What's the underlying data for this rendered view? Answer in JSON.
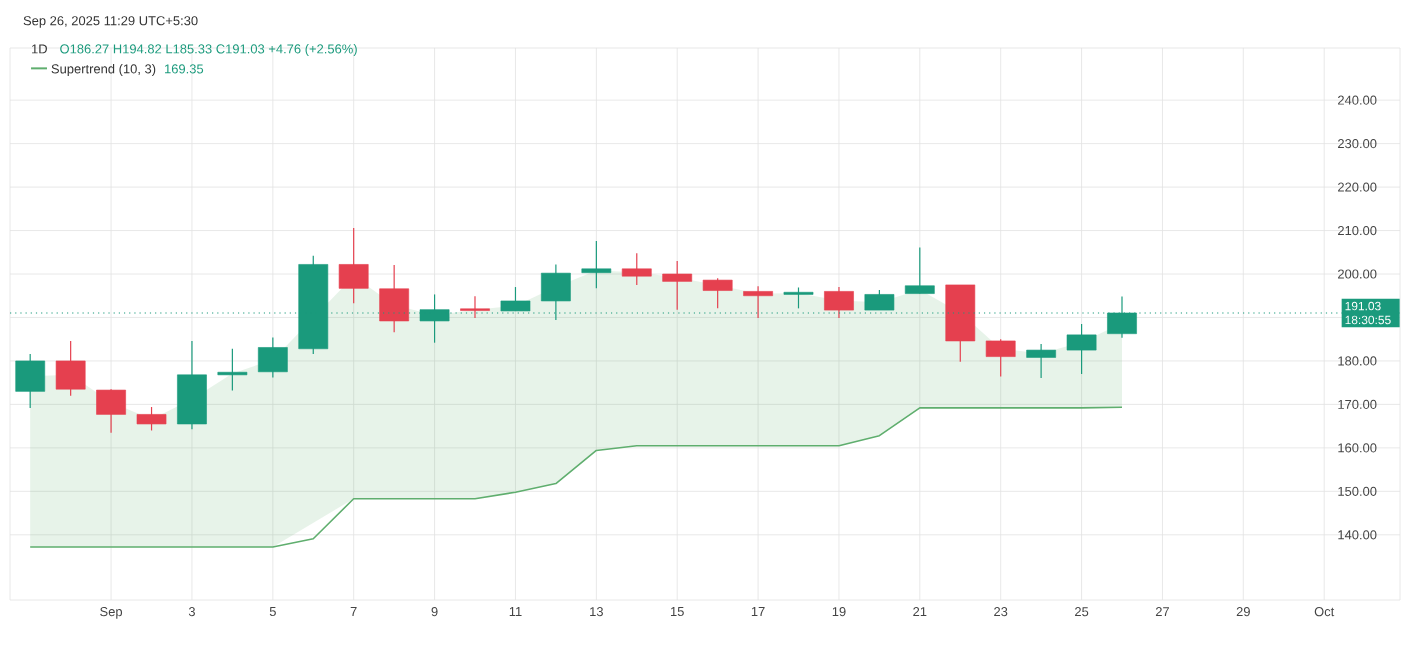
{
  "chart_data": {
    "type": "candlestick",
    "title": "1D",
    "subtitle": "O186.27 H194.82 L185.33 C191.03 +4.76 (+2.56%)",
    "annotations": [
      "Sep 26, 2025 11:29 UTC+5:30",
      "169.35"
    ],
    "x": [
      "2025-08-30",
      "2025-08-31",
      "2025-09-01",
      "2025-09-02",
      "2025-09-03",
      "2025-09-04",
      "2025-09-05",
      "2025-09-06",
      "2025-09-07",
      "2025-09-08",
      "2025-09-09",
      "2025-09-10",
      "2025-09-11",
      "2025-09-12",
      "2025-09-13",
      "2025-09-14",
      "2025-09-15",
      "2025-09-16",
      "2025-09-17",
      "2025-09-18",
      "2025-09-19",
      "2025-09-20",
      "2025-09-21",
      "2025-09-22",
      "2025-09-23",
      "2025-09-24",
      "2025-09-25",
      "2025-09-26"
    ],
    "ohlc": [
      [
        173.0,
        181.6,
        169.2,
        180.0
      ],
      [
        180.0,
        184.6,
        172.0,
        173.5
      ],
      [
        173.3,
        173.5,
        163.5,
        167.7
      ],
      [
        167.7,
        169.4,
        164.0,
        165.5
      ],
      [
        165.5,
        184.6,
        164.3,
        176.8
      ],
      [
        176.8,
        182.8,
        173.2,
        177.4
      ],
      [
        177.5,
        185.4,
        176.2,
        183.1
      ],
      [
        182.8,
        204.2,
        181.6,
        202.2
      ],
      [
        202.2,
        210.6,
        193.3,
        196.7
      ],
      [
        196.6,
        202.1,
        186.6,
        189.2
      ],
      [
        189.2,
        195.3,
        184.2,
        191.8
      ],
      [
        192.0,
        194.9,
        189.9,
        191.6
      ],
      [
        191.5,
        197.0,
        191.5,
        193.8
      ],
      [
        193.8,
        202.2,
        189.4,
        200.2
      ],
      [
        200.3,
        207.6,
        196.7,
        201.2
      ],
      [
        201.2,
        204.8,
        197.5,
        199.5
      ],
      [
        200.0,
        203.0,
        191.8,
        198.3
      ],
      [
        198.6,
        199.0,
        192.1,
        196.2
      ],
      [
        196.0,
        197.2,
        189.9,
        195.0
      ],
      [
        195.3,
        196.9,
        192.1,
        195.8
      ],
      [
        196.0,
        197.0,
        189.9,
        191.7
      ],
      [
        191.7,
        196.3,
        191.7,
        195.3
      ],
      [
        195.5,
        206.1,
        195.5,
        197.3
      ],
      [
        197.5,
        197.5,
        179.8,
        184.6
      ],
      [
        184.6,
        185.0,
        176.4,
        181.0
      ],
      [
        180.8,
        183.9,
        176.1,
        182.5
      ],
      [
        182.5,
        188.5,
        177.0,
        186.0
      ],
      [
        186.27,
        194.82,
        185.33,
        191.03
      ]
    ],
    "colors": [
      "#1a9a7c",
      "#e5404f",
      "#e5404f",
      "#e5404f",
      "#1a9a7c",
      "#1a9a7c",
      "#1a9a7c",
      "#1a9a7c",
      "#e5404f",
      "#e5404f",
      "#1a9a7c",
      "#e5404f",
      "#1a9a7c",
      "#1a9a7c",
      "#1a9a7c",
      "#e5404f",
      "#e5404f",
      "#e5404f",
      "#e5404f",
      "#1a9a7c",
      "#e5404f",
      "#1a9a7c",
      "#1a9a7c",
      "#e5404f",
      "#e5404f",
      "#1a9a7c",
      "#1a9a7c",
      "#1a9a7c"
    ],
    "series": [
      {
        "type": "line",
        "name": "Supertrend (10, 3)",
        "color": "#5fae6e",
        "x": [
          "2025-08-30",
          "2025-08-31",
          "2025-09-01",
          "2025-09-02",
          "2025-09-03",
          "2025-09-04",
          "2025-09-05",
          "2025-09-06",
          "2025-09-07",
          "2025-09-08",
          "2025-09-09",
          "2025-09-10",
          "2025-09-11",
          "2025-09-12",
          "2025-09-13",
          "2025-09-14",
          "2025-09-15",
          "2025-09-16",
          "2025-09-17",
          "2025-09-18",
          "2025-09-19",
          "2025-09-20",
          "2025-09-21",
          "2025-09-22",
          "2025-09-23",
          "2025-09-24",
          "2025-09-25",
          "2025-09-26"
        ],
        "values": [
          137.2,
          137.2,
          137.2,
          137.2,
          137.2,
          137.2,
          137.2,
          139.1,
          148.3,
          148.3,
          148.3,
          148.3,
          149.8,
          151.8,
          159.4,
          160.5,
          160.5,
          160.5,
          160.5,
          160.5,
          160.5,
          162.8,
          169.2,
          169.2,
          169.2,
          169.2,
          169.2,
          169.35
        ],
        "lower": [
          137.2,
          137.2,
          137.2,
          137.2,
          137.2,
          137.2,
          137.2,
          null,
          148.3,
          148.3,
          148.3,
          148.3,
          149.8,
          151.8,
          159.4,
          160.5,
          160.5,
          160.5,
          160.5,
          160.5,
          160.5,
          162.8,
          169.2,
          169.2,
          169.2,
          169.2,
          169.2,
          169.35
        ],
        "upper": [
          176.5,
          176.8,
          170.5,
          166.6,
          171.2,
          177.1,
          180.3,
          null,
          199.5,
          192.9,
          190.5,
          191.8,
          192.7,
          197.0,
          200.8,
          200.4,
          199.2,
          197.4,
          195.5,
          195.6,
          193.9,
          193.5,
          196.4,
          191.1,
          182.8,
          181.7,
          184.3,
          188.7
        ]
      }
    ],
    "xlim": [
      "2025-08-29T12:00",
      "2025-10-02T21:00"
    ],
    "xticks": [
      {
        "value": "2025-09-01",
        "label": "Sep"
      },
      {
        "value": "2025-09-03",
        "label": "3"
      },
      {
        "value": "2025-09-05",
        "label": "5"
      },
      {
        "value": "2025-09-07",
        "label": "7"
      },
      {
        "value": "2025-09-09",
        "label": "9"
      },
      {
        "value": "2025-09-11",
        "label": "11"
      },
      {
        "value": "2025-09-13",
        "label": "13"
      },
      {
        "value": "2025-09-15",
        "label": "15"
      },
      {
        "value": "2025-09-17",
        "label": "17"
      },
      {
        "value": "2025-09-19",
        "label": "19"
      },
      {
        "value": "2025-09-21",
        "label": "21"
      },
      {
        "value": "2025-09-23",
        "label": "23"
      },
      {
        "value": "2025-09-25",
        "label": "25"
      },
      {
        "value": "2025-09-27",
        "label": "27"
      },
      {
        "value": "2025-09-29",
        "label": "29"
      },
      {
        "value": "2025-10-01",
        "label": "Oct"
      }
    ],
    "ylim": [
      125,
      252
    ],
    "yticks": [
      {
        "value": 140,
        "label": "140.00"
      },
      {
        "value": 150,
        "label": "150.00"
      },
      {
        "value": 160,
        "label": "160.00"
      },
      {
        "value": 170,
        "label": "170.00"
      },
      {
        "value": 180,
        "label": "180.00"
      },
      {
        "value": 190,
        "label": null
      },
      {
        "value": 200,
        "label": "200.00"
      },
      {
        "value": 210,
        "label": "210.00"
      },
      {
        "value": 220,
        "label": "220.00"
      },
      {
        "value": 230,
        "label": "230.00"
      },
      {
        "value": 240,
        "label": "240.00"
      }
    ],
    "ref_lines": [
      {
        "axis": "y",
        "value": 191.03,
        "label": "191.03 18:30:55",
        "color": "#1a9a7c",
        "line_style": "dotted"
      }
    ],
    "grid": true
  }
}
